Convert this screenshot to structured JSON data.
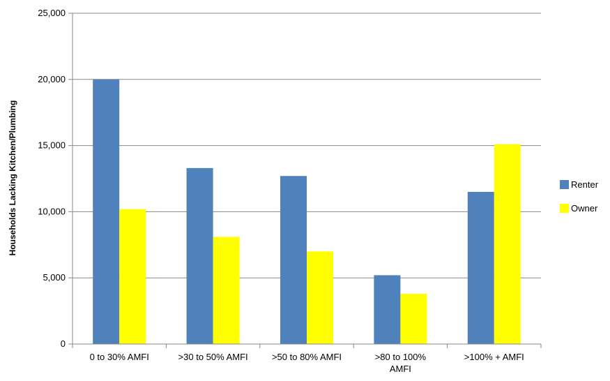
{
  "chart_data": {
    "type": "bar",
    "title": "",
    "xlabel": "",
    "ylabel": "Households Lacking Kitchen/Plumbing",
    "categories": [
      "0 to 30% AMFI",
      ">30 to 50% AMFI",
      ">50 to 80% AMFI",
      ">80 to 100% AMFI",
      ">100% + AMFI"
    ],
    "category_lines": [
      [
        "0 to 30% AMFI"
      ],
      [
        ">30 to 50% AMFI"
      ],
      [
        ">50 to 80% AMFI"
      ],
      [
        ">80 to 100%",
        "AMFI"
      ],
      [
        ">100% + AMFI"
      ]
    ],
    "series": [
      {
        "name": "Renter",
        "color": "#4F81BD",
        "values": [
          20000,
          13300,
          12700,
          5200,
          11500
        ]
      },
      {
        "name": "Owner",
        "color": "#FFFF00",
        "values": [
          10200,
          8100,
          7000,
          3800,
          15100
        ]
      }
    ],
    "ylim": [
      0,
      25000
    ],
    "yticks": [
      0,
      5000,
      10000,
      15000,
      20000,
      25000
    ],
    "ytick_labels": [
      "0",
      "5,000",
      "10,000",
      "15,000",
      "20,000",
      "25,000"
    ],
    "grid": true,
    "legend_position": "right"
  }
}
